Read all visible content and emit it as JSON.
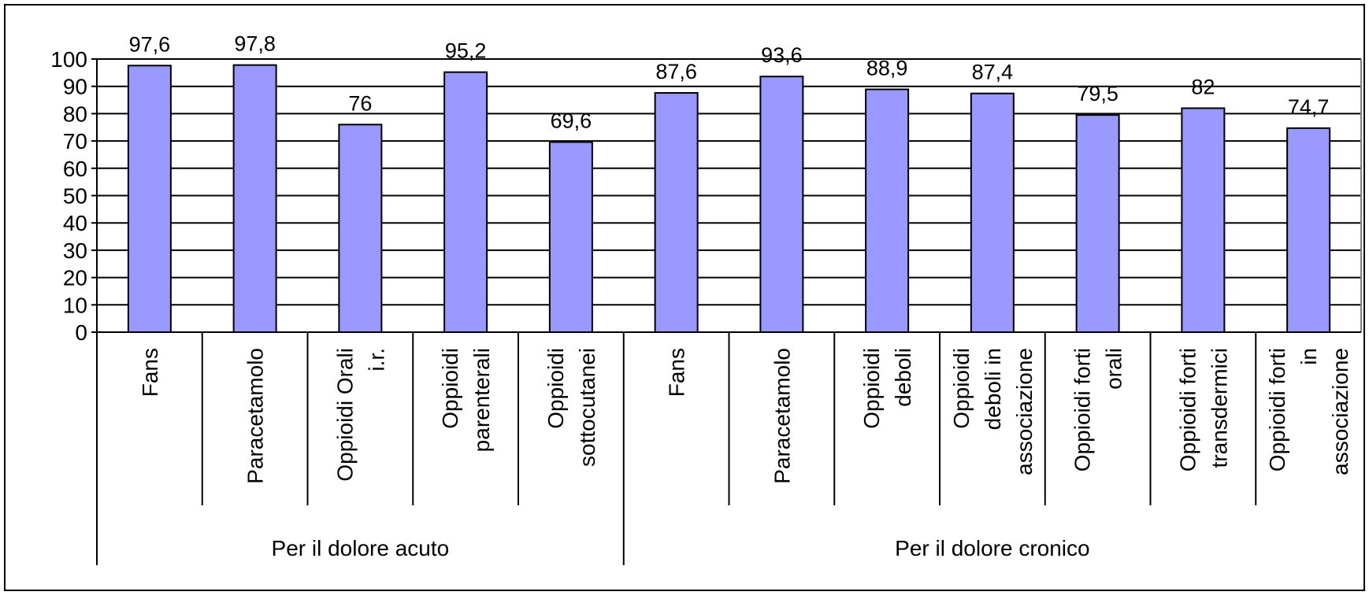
{
  "chart_data": {
    "type": "bar",
    "title": "",
    "xlabel": "",
    "ylabel": "",
    "ylim": [
      0,
      100
    ],
    "yticks": [
      0,
      10,
      20,
      30,
      40,
      50,
      60,
      70,
      80,
      90,
      100
    ],
    "grid": true,
    "legend": "none",
    "bar_color": "#9999ff",
    "groups": [
      {
        "label": "Per il dolore acuto",
        "count": 5
      },
      {
        "label": "Per il dolore cronico",
        "count": 7
      }
    ],
    "categories": [
      [
        "Fans"
      ],
      [
        "Paracetamolo"
      ],
      [
        "Oppioidi Orali",
        "i.r."
      ],
      [
        "Oppioidi",
        "parenterali"
      ],
      [
        "Oppioidi",
        "sottocutanei"
      ],
      [
        "Fans"
      ],
      [
        "Paracetamolo"
      ],
      [
        "Oppioidi",
        "deboli"
      ],
      [
        "Oppioidi",
        "deboli in",
        "associazione"
      ],
      [
        "Oppioidi forti",
        "orali"
      ],
      [
        "Oppioidi forti",
        "transdermici"
      ],
      [
        "Oppioidi forti",
        "in",
        "associazione"
      ]
    ],
    "values": [
      97.6,
      97.8,
      76,
      95.2,
      69.6,
      87.6,
      93.6,
      88.9,
      87.4,
      79.5,
      82,
      74.7
    ],
    "value_labels": [
      "97,6",
      "97,8",
      "76",
      "95,2",
      "69,6",
      "87,6",
      "93,6",
      "88,9",
      "87,4",
      "79,5",
      "82",
      "74,7"
    ]
  }
}
